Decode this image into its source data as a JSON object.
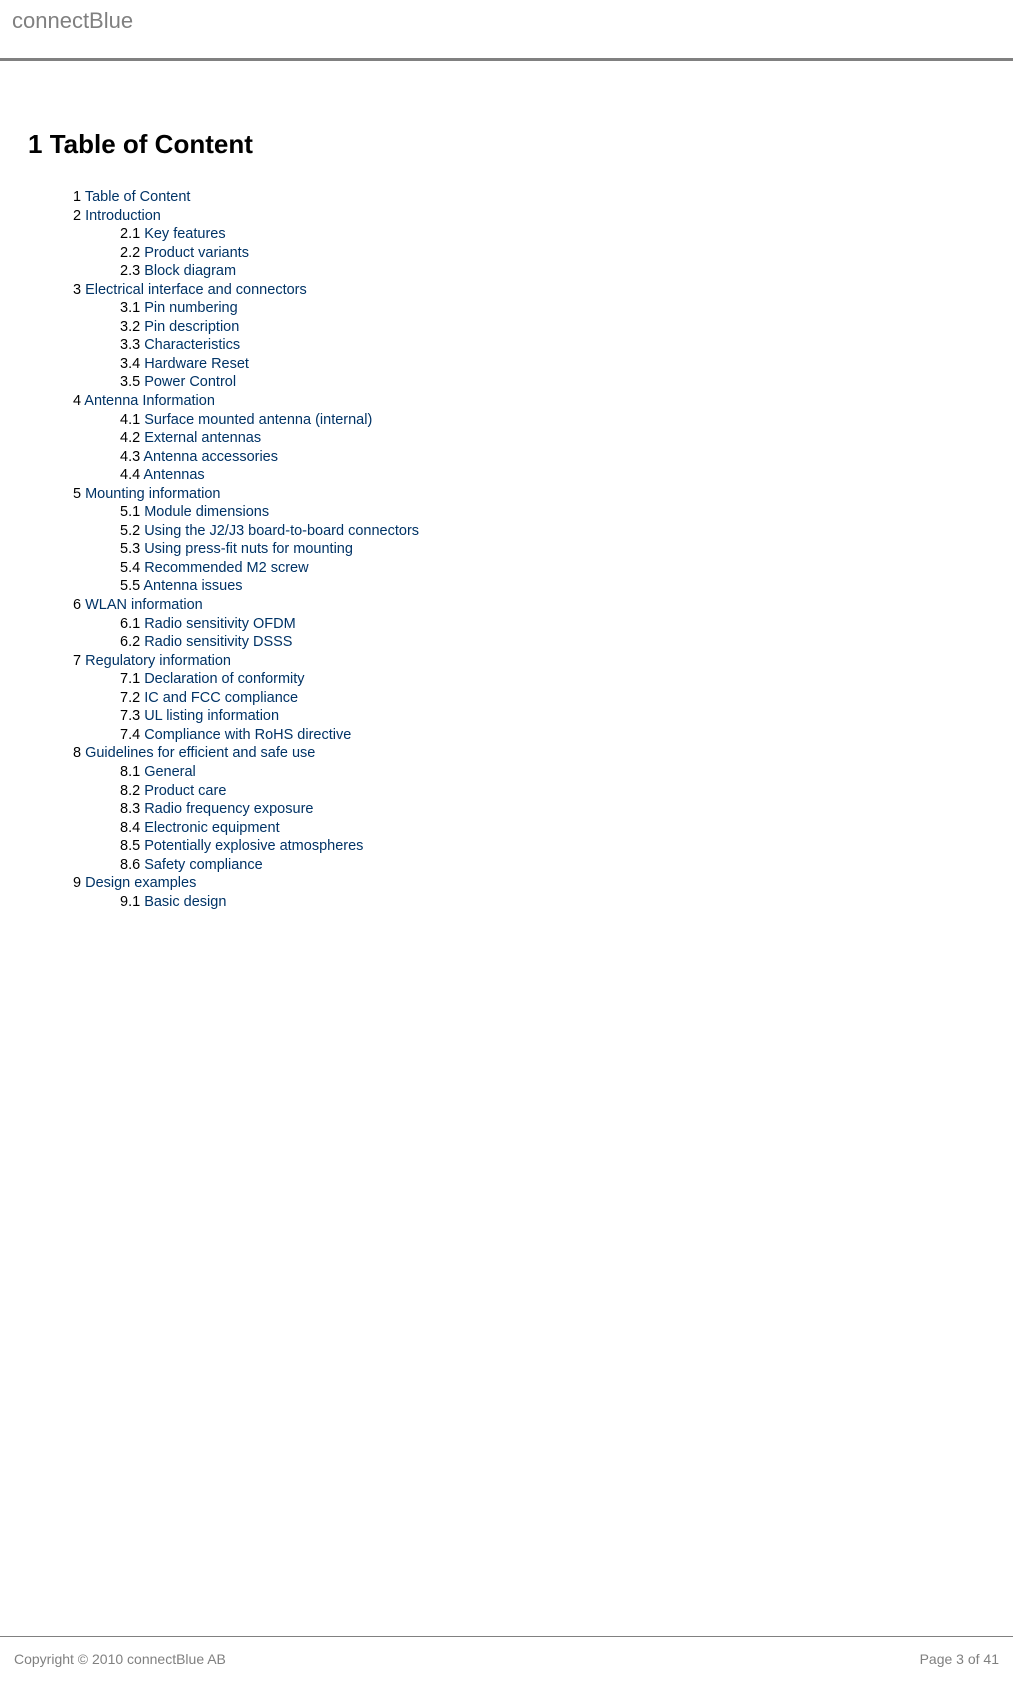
{
  "header": {
    "brand": "connectBlue"
  },
  "heading": {
    "number": "1",
    "title": "Table of Content"
  },
  "toc": [
    {
      "num": "1",
      "label": "Table of Content",
      "children": []
    },
    {
      "num": "2",
      "label": "Introduction",
      "children": [
        {
          "num": "2.1",
          "label": "Key features"
        },
        {
          "num": "2.2",
          "label": "Product variants"
        },
        {
          "num": "2.3",
          "label": "Block diagram"
        }
      ]
    },
    {
      "num": "3",
      "label": "Electrical interface and connectors",
      "children": [
        {
          "num": "3.1",
          "label": "Pin numbering"
        },
        {
          "num": "3.2",
          "label": "Pin description"
        },
        {
          "num": "3.3",
          "label": "Characteristics"
        },
        {
          "num": "3.4",
          "label": "Hardware Reset"
        },
        {
          "num": "3.5",
          "label": "Power Control"
        }
      ]
    },
    {
      "num": "4",
      "label": "Antenna Information",
      "children": [
        {
          "num": "4.1",
          "label": "Surface mounted antenna (internal)"
        },
        {
          "num": "4.2",
          "label": "External antennas"
        },
        {
          "num": "4.3",
          "label": "Antenna accessories"
        },
        {
          "num": "4.4",
          "label": "Antennas"
        }
      ]
    },
    {
      "num": "5",
      "label": "Mounting information",
      "children": [
        {
          "num": "5.1",
          "label": "Module dimensions"
        },
        {
          "num": "5.2",
          "label": "Using the J2/J3 board-to-board connectors"
        },
        {
          "num": "5.3",
          "label": "Using press-fit nuts for mounting"
        },
        {
          "num": "5.4",
          "label": "Recommended M2 screw"
        },
        {
          "num": "5.5",
          "label": "Antenna issues"
        }
      ]
    },
    {
      "num": "6",
      "label": "WLAN information",
      "children": [
        {
          "num": "6.1",
          "label": "Radio sensitivity OFDM"
        },
        {
          "num": "6.2",
          "label": "Radio sensitivity DSSS"
        }
      ]
    },
    {
      "num": "7",
      "label": "Regulatory information",
      "children": [
        {
          "num": "7.1",
          "label": "Declaration of conformity"
        },
        {
          "num": "7.2",
          "label": "IC and FCC compliance"
        },
        {
          "num": "7.3",
          "label": "UL listing information"
        },
        {
          "num": "7.4",
          "label": "Compliance with RoHS directive"
        }
      ]
    },
    {
      "num": "8",
      "label": "Guidelines for efficient and safe use",
      "children": [
        {
          "num": "8.1",
          "label": "General"
        },
        {
          "num": "8.2",
          "label": "Product care"
        },
        {
          "num": "8.3",
          "label": "Radio frequency exposure"
        },
        {
          "num": "8.4",
          "label": "Electronic equipment"
        },
        {
          "num": "8.5",
          "label": "Potentially explosive atmospheres"
        },
        {
          "num": "8.6",
          "label": "Safety compliance"
        }
      ]
    },
    {
      "num": "9",
      "label": "Design examples",
      "children": [
        {
          "num": "9.1",
          "label": "Basic design"
        }
      ]
    }
  ],
  "footer": {
    "copyright": "Copyright © 2010 connectBlue AB",
    "page": "Page 3 of 41"
  }
}
